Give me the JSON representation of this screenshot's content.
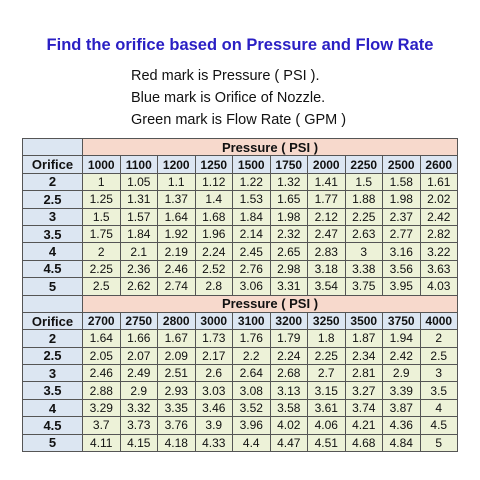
{
  "title": "Find the orifice based on Pressure and Flow Rate",
  "notes": [
    "Red mark is Pressure ( PSI ).",
    "Blue mark is Orifice of Nozzle.",
    "Green mark is Flow Rate ( GPM )"
  ],
  "tables": [
    {
      "header": "Pressure ( PSI )",
      "corner_label": "Orifice",
      "pressures": [
        "1000",
        "1100",
        "1200",
        "1250",
        "1500",
        "1750",
        "2000",
        "2250",
        "2500",
        "2600"
      ],
      "rows": [
        {
          "orifice": "2",
          "flows": [
            "1",
            "1.05",
            "1.1",
            "1.12",
            "1.22",
            "1.32",
            "1.41",
            "1.5",
            "1.58",
            "1.61"
          ]
        },
        {
          "orifice": "2.5",
          "flows": [
            "1.25",
            "1.31",
            "1.37",
            "1.4",
            "1.53",
            "1.65",
            "1.77",
            "1.88",
            "1.98",
            "2.02"
          ]
        },
        {
          "orifice": "3",
          "flows": [
            "1.5",
            "1.57",
            "1.64",
            "1.68",
            "1.84",
            "1.98",
            "2.12",
            "2.25",
            "2.37",
            "2.42"
          ]
        },
        {
          "orifice": "3.5",
          "flows": [
            "1.75",
            "1.84",
            "1.92",
            "1.96",
            "2.14",
            "2.32",
            "2.47",
            "2.63",
            "2.77",
            "2.82"
          ]
        },
        {
          "orifice": "4",
          "flows": [
            "2",
            "2.1",
            "2.19",
            "2.24",
            "2.45",
            "2.65",
            "2.83",
            "3",
            "3.16",
            "3.22"
          ]
        },
        {
          "orifice": "4.5",
          "flows": [
            "2.25",
            "2.36",
            "2.46",
            "2.52",
            "2.76",
            "2.98",
            "3.18",
            "3.38",
            "3.56",
            "3.63"
          ]
        },
        {
          "orifice": "5",
          "flows": [
            "2.5",
            "2.62",
            "2.74",
            "2.8",
            "3.06",
            "3.31",
            "3.54",
            "3.75",
            "3.95",
            "4.03"
          ]
        }
      ]
    },
    {
      "header": "Pressure ( PSI )",
      "corner_label": "Orifice",
      "pressures": [
        "2700",
        "2750",
        "2800",
        "3000",
        "3100",
        "3200",
        "3250",
        "3500",
        "3750",
        "4000"
      ],
      "rows": [
        {
          "orifice": "2",
          "flows": [
            "1.64",
            "1.66",
            "1.67",
            "1.73",
            "1.76",
            "1.79",
            "1.8",
            "1.87",
            "1.94",
            "2"
          ]
        },
        {
          "orifice": "2.5",
          "flows": [
            "2.05",
            "2.07",
            "2.09",
            "2.17",
            "2.2",
            "2.24",
            "2.25",
            "2.34",
            "2.42",
            "2.5"
          ]
        },
        {
          "orifice": "3",
          "flows": [
            "2.46",
            "2.49",
            "2.51",
            "2.6",
            "2.64",
            "2.68",
            "2.7",
            "2.81",
            "2.9",
            "3"
          ]
        },
        {
          "orifice": "3.5",
          "flows": [
            "2.88",
            "2.9",
            "2.93",
            "3.03",
            "3.08",
            "3.13",
            "3.15",
            "3.27",
            "3.39",
            "3.5"
          ]
        },
        {
          "orifice": "4",
          "flows": [
            "3.29",
            "3.32",
            "3.35",
            "3.46",
            "3.52",
            "3.58",
            "3.61",
            "3.74",
            "3.87",
            "4"
          ]
        },
        {
          "orifice": "4.5",
          "flows": [
            "3.7",
            "3.73",
            "3.76",
            "3.9",
            "3.96",
            "4.02",
            "4.06",
            "4.21",
            "4.36",
            "4.5"
          ]
        },
        {
          "orifice": "5",
          "flows": [
            "4.11",
            "4.15",
            "4.18",
            "4.33",
            "4.4",
            "4.47",
            "4.51",
            "4.68",
            "4.84",
            "5"
          ]
        }
      ]
    }
  ]
}
